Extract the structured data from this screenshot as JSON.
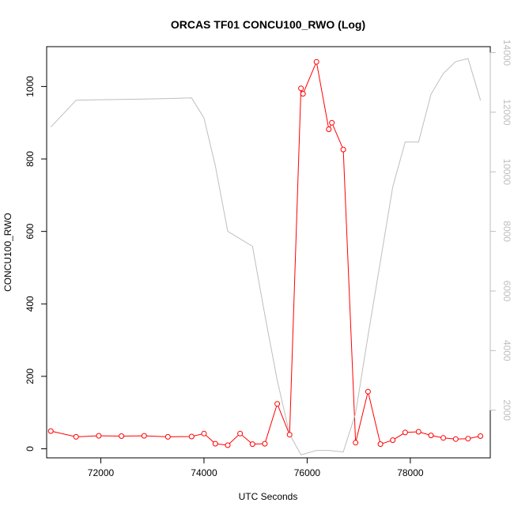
{
  "chart_data": {
    "type": "line",
    "title": "ORCAS TF01 CONCU100_RWO (Log)",
    "xlabel": "UTC Seconds",
    "ylabel": "CONCU100_RWO",
    "xlim": [
      70950,
      79550
    ],
    "ylim": [
      -25,
      1110
    ],
    "y2lim": [
      400,
      14200
    ],
    "x_ticks": [
      72000,
      74000,
      76000,
      78000
    ],
    "y_ticks": [
      0,
      200,
      400,
      600,
      800,
      1000
    ],
    "y2_ticks": [
      2000,
      4000,
      6000,
      8000,
      10000,
      12000,
      14000
    ],
    "colors": {
      "primary": "#ff0000",
      "secondary": "#bebebe",
      "frame": "#000000"
    },
    "series": [
      {
        "axis": "left",
        "markers": "open-circle",
        "x": [
          71030,
          71520,
          71960,
          72400,
          72840,
          73300,
          73760,
          74000,
          74220,
          74460,
          74700,
          74940,
          75180,
          75420,
          75660,
          75880,
          75920,
          76180,
          76420,
          76480,
          76700,
          76940,
          77180,
          77420,
          77660,
          77900,
          78160,
          78400,
          78640,
          78880,
          79120,
          79360
        ],
        "values": [
          49,
          33,
          36,
          35,
          36,
          33,
          34,
          42,
          14,
          10,
          42,
          13,
          14,
          124,
          39,
          995,
          980,
          1068,
          882,
          900,
          826,
          17,
          158,
          13,
          24,
          45,
          47,
          37,
          30,
          27,
          28,
          35
        ]
      },
      {
        "axis": "right",
        "markers": "none",
        "x": [
          71030,
          71520,
          71960,
          72400,
          72840,
          73300,
          73760,
          74000,
          74220,
          74460,
          74940,
          75180,
          75420,
          75660,
          75880,
          76180,
          76420,
          76700,
          76940,
          77180,
          77420,
          77660,
          77900,
          78160,
          78400,
          78640,
          78880,
          79120,
          79360
        ],
        "values": [
          11500,
          12400,
          12420,
          12430,
          12440,
          12460,
          12480,
          11800,
          10200,
          8000,
          7500,
          5200,
          3000,
          1200,
          500,
          650,
          650,
          600,
          1900,
          4500,
          7000,
          9500,
          11000,
          11000,
          12600,
          13300,
          13700,
          13800,
          12400
        ]
      }
    ]
  }
}
